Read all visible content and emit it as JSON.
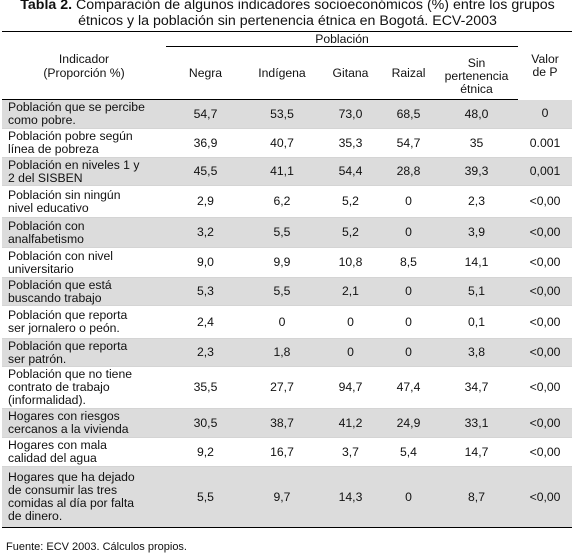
{
  "caption": {
    "label": "Tabla 2.",
    "text": "Comparación de algunos indicadores socioeconómicos (%) entre los grupos étnicos y la población sin pertenencia étnica en Bogotá. ECV-2003"
  },
  "header": {
    "indicator": "Indicador\n(Proporción %)",
    "group": "Población",
    "columns": [
      "Negra",
      "Indígena",
      "Gitana",
      "Raizal",
      "Sin\npertenencia\nétnica"
    ],
    "pvalue": "Valor\nde P"
  },
  "rows": [
    {
      "label": "Población que se percibe\ncomo pobre.",
      "values": [
        "54,7",
        "53,5",
        "73,0",
        "68,5",
        "48,0",
        "0"
      ]
    },
    {
      "label": "Población pobre según\nlínea de pobreza",
      "values": [
        "36,9",
        "40,7",
        "35,3",
        "54,7",
        "35",
        "0.001"
      ]
    },
    {
      "label": "Población en niveles 1 y\n2 del SISBEN",
      "values": [
        "45,5",
        "41,1",
        "54,4",
        "28,8",
        "39,3",
        "0,001"
      ]
    },
    {
      "label": "Población sin ningún\nnivel educativo",
      "values": [
        "2,9",
        "6,2",
        "5,2",
        "0",
        "2,3",
        "<0,00"
      ]
    },
    {
      "label": "Población con\nanalfabetismo",
      "values": [
        "3,2",
        "5,5",
        "5,2",
        "0",
        "3,9",
        "<0,00"
      ]
    },
    {
      "label": "Población con nivel\nuniversitario",
      "values": [
        "9,0",
        "9,9",
        "10,8",
        "8,5",
        "14,1",
        "<0,00"
      ]
    },
    {
      "label": "Población que está\nbuscando trabajo",
      "values": [
        "5,3",
        "5,5",
        "2,1",
        "0",
        "5,1",
        "<0,00"
      ]
    },
    {
      "label": "Población que reporta\nser jornalero o peón.",
      "values": [
        "2,4",
        "0",
        "0",
        "0",
        "0,1",
        "<0,00"
      ]
    },
    {
      "label": "Población que reporta\nser patrón.",
      "values": [
        "2,3",
        "1,8",
        "0",
        "0",
        "3,8",
        "<0,00"
      ]
    },
    {
      "label": "Población que no tiene\ncontrato de trabajo\n(informalidad).",
      "values": [
        "35,5",
        "27,7",
        "94,7",
        "47,4",
        "34,7",
        "<0,00"
      ]
    },
    {
      "label": "Hogares con riesgos\ncercanos a la vivienda",
      "values": [
        "30,5",
        "38,7",
        "41,2",
        "24,9",
        "33,1",
        "<0,00"
      ]
    },
    {
      "label": "Hogares con mala\ncalidad del agua",
      "values": [
        "9,2",
        "16,7",
        "3,7",
        "5,4",
        "14,7",
        "<0,00"
      ]
    },
    {
      "label": "Hogares que ha dejado\nde consumir las tres\ncomidas al día por falta\nde dinero.",
      "values": [
        "5,5",
        "9,7",
        "14,3",
        "0",
        "8,7",
        "<0,00"
      ]
    }
  ],
  "footer": "Fuente: ECV 2003. Cálculos propios."
}
